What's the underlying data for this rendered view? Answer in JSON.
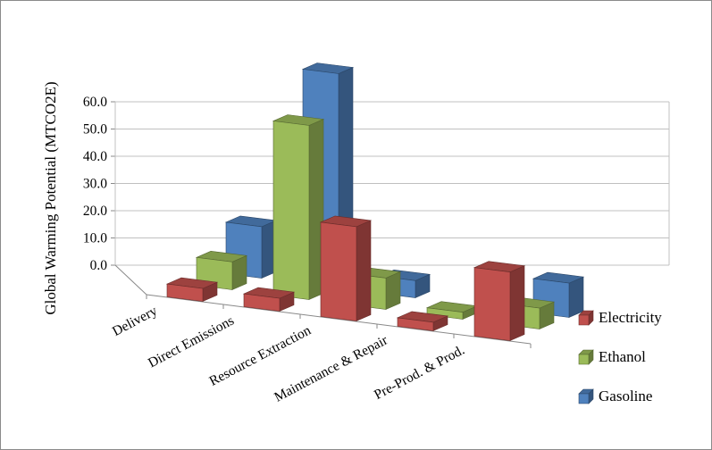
{
  "figure": {
    "background": "#ffffff",
    "border_color": "#8a8a8a"
  },
  "chart_data": {
    "type": "bar",
    "variant": "3d-clustered-column",
    "title": "",
    "xlabel": "",
    "ylabel": "Global Warming Potential (MTCO2E)",
    "categories": [
      "Delivery",
      "Direct Emissions",
      "Resource Extraction",
      "Maintenance & Repair",
      "Pre-Prod. & Prod."
    ],
    "series": [
      {
        "name": "Electricity",
        "color": "#C0504D",
        "values": [
          3.0,
          3.0,
          22.0,
          2.0,
          16.0
        ]
      },
      {
        "name": "Ethanol",
        "color": "#9BBB59",
        "values": [
          8.0,
          50.0,
          9.0,
          2.0,
          6.0
        ]
      },
      {
        "name": "Gasoline",
        "color": "#4F81BD",
        "values": [
          18.0,
          75.0,
          6.0,
          0.0,
          12.0
        ]
      }
    ],
    "y_ticks": [
      "0.0",
      "10.0",
      "20.0",
      "30.0",
      "40.0",
      "50.0",
      "60.0"
    ],
    "ylim": [
      0,
      60
    ],
    "grid": true,
    "legend_position": "right-bottom"
  }
}
